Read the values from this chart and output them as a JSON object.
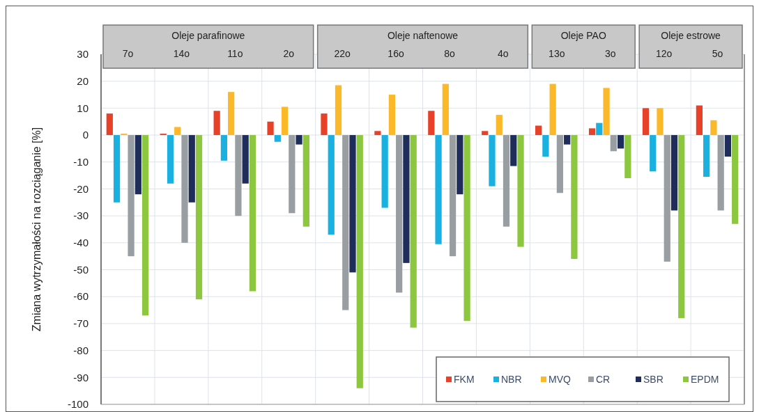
{
  "chart_data": {
    "type": "bar",
    "ylabel": "Zmiana wytrzymałości na rozciąganie [%]",
    "categories": [
      "7o",
      "14o",
      "11o",
      "2o",
      "22o",
      "16o",
      "8o",
      "4o",
      "13o",
      "3o",
      "12o",
      "5o"
    ],
    "series": [
      {
        "name": "FKM",
        "color": "#e8412a",
        "values": [
          8,
          0.5,
          9,
          5,
          8,
          1.5,
          9,
          1.5,
          3.5,
          2.5,
          10,
          11
        ]
      },
      {
        "name": "NBR",
        "color": "#1ab0e0",
        "values": [
          -25,
          -18,
          -9.5,
          -2.5,
          -37,
          -27,
          -40.5,
          -19,
          -8,
          4.5,
          -13.5,
          -15.5
        ]
      },
      {
        "name": "MVQ",
        "color": "#fbb829",
        "values": [
          0.5,
          3,
          16,
          10.5,
          18.5,
          15,
          19,
          7.5,
          19,
          17.5,
          10,
          5.5
        ]
      },
      {
        "name": "CR",
        "color": "#999ea3",
        "values": [
          -45,
          -40,
          -30,
          -29,
          -65,
          -58.5,
          -45,
          -34,
          -21.5,
          -6,
          -47,
          -28
        ]
      },
      {
        "name": "SBR",
        "color": "#1e2d5a",
        "values": [
          -22,
          -25,
          -18,
          -3.5,
          -51,
          -47.5,
          -22,
          -11.5,
          -3.5,
          -5,
          -28,
          -8
        ]
      },
      {
        "name": "EPDM",
        "color": "#8dc63f",
        "values": [
          -67,
          -61,
          -58,
          -34,
          -94,
          -71.5,
          -69,
          -41.5,
          -46,
          -16,
          -68,
          -33
        ]
      }
    ],
    "annotations": [
      "Oleje parafinowe",
      "Oleje naftenowe",
      "Oleje PAO",
      "Oleje estrowe"
    ],
    "ylim": [
      -100,
      30
    ],
    "yticks": [
      -100,
      -90,
      -80,
      -70,
      -60,
      -50,
      -40,
      -30,
      -20,
      -10,
      0,
      10,
      20,
      30
    ],
    "grid": true,
    "legend": "bottom right"
  }
}
